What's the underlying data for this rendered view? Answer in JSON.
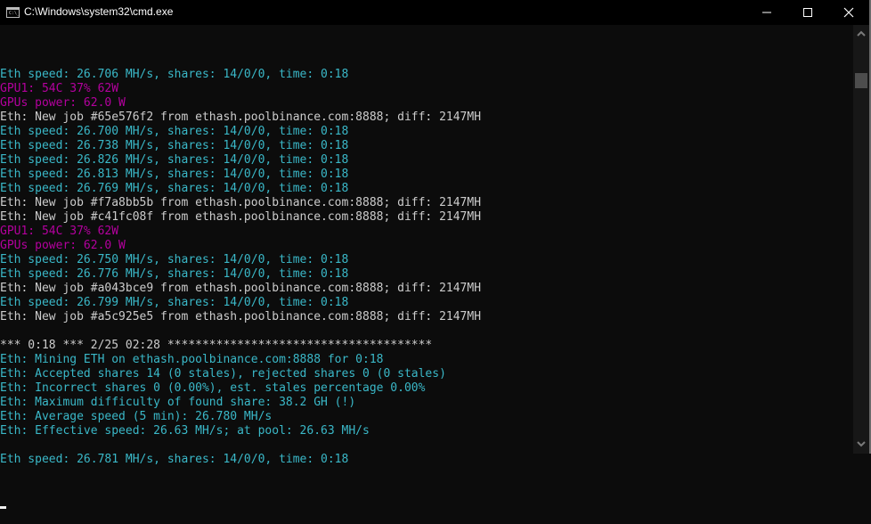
{
  "window": {
    "title": "C:\\Windows\\system32\\cmd.exe",
    "icon": "cmd-icon",
    "icon_text": "C:\\_",
    "controls": [
      "minimize-icon",
      "maximize-icon",
      "close-icon"
    ]
  },
  "colors": {
    "speed": "#3ab8c8",
    "info": "#cccccc",
    "gpu": "#b4009e",
    "background": "#0c0c0c"
  },
  "console": {
    "lines": [
      {
        "text": "Eth speed: 26.706 MH/s, shares: 14/0/0, time: 0:18",
        "style": "speed"
      },
      {
        "text": "GPU1: 54C 37% 62W",
        "style": "gpu"
      },
      {
        "text": "GPUs power: 62.0 W",
        "style": "gpu"
      },
      {
        "text": "Eth: New job #65e576f2 from ethash.poolbinance.com:8888; diff: 2147MH",
        "style": "info"
      },
      {
        "text": "Eth speed: 26.700 MH/s, shares: 14/0/0, time: 0:18",
        "style": "speed"
      },
      {
        "text": "Eth speed: 26.738 MH/s, shares: 14/0/0, time: 0:18",
        "style": "speed"
      },
      {
        "text": "Eth speed: 26.826 MH/s, shares: 14/0/0, time: 0:18",
        "style": "speed"
      },
      {
        "text": "Eth speed: 26.813 MH/s, shares: 14/0/0, time: 0:18",
        "style": "speed"
      },
      {
        "text": "Eth speed: 26.769 MH/s, shares: 14/0/0, time: 0:18",
        "style": "speed"
      },
      {
        "text": "Eth: New job #f7a8bb5b from ethash.poolbinance.com:8888; diff: 2147MH",
        "style": "info"
      },
      {
        "text": "Eth: New job #c41fc08f from ethash.poolbinance.com:8888; diff: 2147MH",
        "style": "info"
      },
      {
        "text": "GPU1: 54C 37% 62W",
        "style": "gpu"
      },
      {
        "text": "GPUs power: 62.0 W",
        "style": "gpu"
      },
      {
        "text": "Eth speed: 26.750 MH/s, shares: 14/0/0, time: 0:18",
        "style": "speed"
      },
      {
        "text": "Eth speed: 26.776 MH/s, shares: 14/0/0, time: 0:18",
        "style": "speed"
      },
      {
        "text": "Eth: New job #a043bce9 from ethash.poolbinance.com:8888; diff: 2147MH",
        "style": "info"
      },
      {
        "text": "Eth speed: 26.799 MH/s, shares: 14/0/0, time: 0:18",
        "style": "speed"
      },
      {
        "text": "Eth: New job #a5c925e5 from ethash.poolbinance.com:8888; diff: 2147MH",
        "style": "info"
      },
      {
        "text": "",
        "style": "info"
      },
      {
        "text": "*** 0:18 *** 2/25 02:28 **************************************",
        "style": "info"
      },
      {
        "text": "Eth: Mining ETH on ethash.poolbinance.com:8888 for 0:18",
        "style": "speed"
      },
      {
        "text": "Eth: Accepted shares 14 (0 stales), rejected shares 0 (0 stales)",
        "style": "speed"
      },
      {
        "text": "Eth: Incorrect shares 0 (0.00%), est. stales percentage 0.00%",
        "style": "speed"
      },
      {
        "text": "Eth: Maximum difficulty of found share: 38.2 GH (!)",
        "style": "speed"
      },
      {
        "text": "Eth: Average speed (5 min): 26.780 MH/s",
        "style": "speed"
      },
      {
        "text": "Eth: Effective speed: 26.63 MH/s; at pool: 26.63 MH/s",
        "style": "speed"
      },
      {
        "text": "",
        "style": "info"
      },
      {
        "text": "Eth speed: 26.781 MH/s, shares: 14/0/0, time: 0:18",
        "style": "speed"
      }
    ]
  },
  "scrollbar": {
    "position_fraction": 0.0
  }
}
